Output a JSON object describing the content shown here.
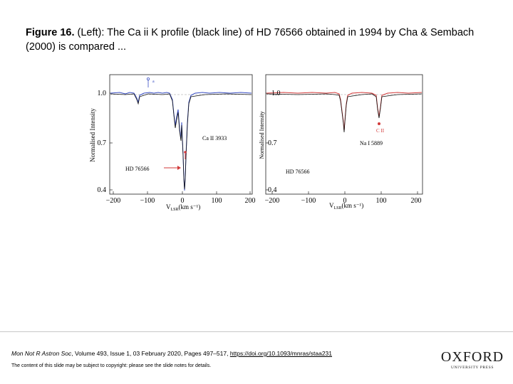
{
  "caption": {
    "figure_label": "Figure 16.",
    "text": " (Left): The Ca ii K profile (black line) of HD 76566 obtained in 1994 by Cha & Sembach (2000) is compared ..."
  },
  "figure": {
    "left_panel": {
      "ylabel": "Normalised Intensity",
      "yticks": [
        "1.0",
        "0.7",
        "0.4"
      ],
      "xticks": [
        "−200",
        "−100",
        "0",
        "100",
        "200"
      ],
      "xlabel": "V",
      "xlabel_sub": "LSR",
      "xlabel_unit": "(km s⁻¹)",
      "line_label": "Ca II 3933",
      "star_label": "HD 76566",
      "legend_marks": [
        "e",
        "a"
      ],
      "profile_color": "#3a4fc4"
    },
    "right_panel": {
      "ylabel": "Normalised Intensity",
      "yticks": [
        "1.0",
        "0.7",
        "0.4"
      ],
      "xticks": [
        "−200",
        "−100",
        "0",
        "100",
        "200"
      ],
      "xlabel": "V",
      "xlabel_sub": "LSR",
      "xlabel_unit": "(km s⁻¹)",
      "line_label": "Na I 5889",
      "star_label": "HD 76566",
      "marker_label": "C II",
      "profile_color": "#d23a3a"
    }
  },
  "footer": {
    "journal": "Mon Not R Astron Soc",
    "citation_rest": ", Volume 493, Issue 1, 03 February 2020, Pages 497–517, ",
    "doi": "https://doi.org/10.1093/mnras/staa231",
    "copyright": "The content of this slide may be subject to copyright: please see the slide notes for details."
  },
  "logo": {
    "name": "OXFORD",
    "subtitle": "UNIVERSITY PRESS"
  }
}
